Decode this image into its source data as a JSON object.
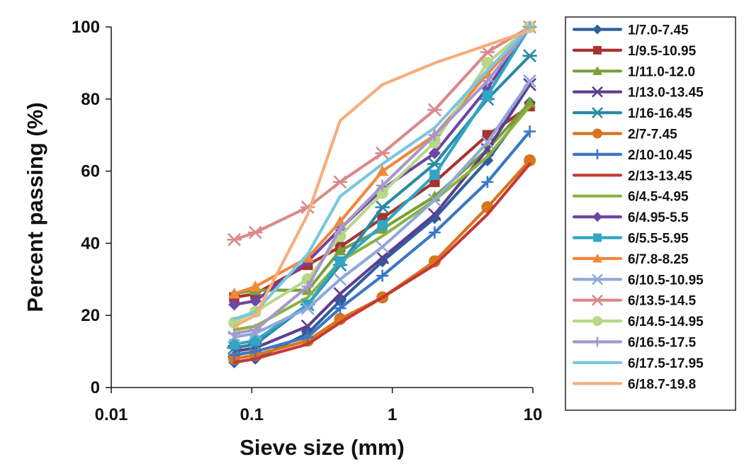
{
  "chart_data": {
    "type": "line",
    "xlabel": "Sieve size  (mm)",
    "ylabel": "Percent passing  (%)",
    "xscale": "log",
    "xlim": [
      0.01,
      10
    ],
    "ylim": [
      0,
      100
    ],
    "xticks": [
      0.01,
      0.1,
      1,
      10
    ],
    "xtick_labels": [
      "0.01",
      "0.1",
      "1",
      "10"
    ],
    "yticks": [
      0,
      20,
      40,
      60,
      80,
      100
    ],
    "ytick_labels": [
      "0",
      "20",
      "40",
      "60",
      "80",
      "100"
    ],
    "grid": false,
    "legend_position": "right",
    "x": [
      0.075,
      0.106,
      0.25,
      0.425,
      0.85,
      2.0,
      4.75,
      9.5
    ],
    "series": [
      {
        "name": "1/7.0-7.45",
        "color": "#2e5fa0",
        "marker": "diamond",
        "values": [
          7,
          8,
          15,
          24,
          35,
          47,
          63,
          79
        ]
      },
      {
        "name": "1/9.5-10.95",
        "color": "#a8322f",
        "marker": "square",
        "values": [
          25,
          26,
          34,
          39,
          47,
          57,
          70,
          78
        ]
      },
      {
        "name": "1/11.0-12.0",
        "color": "#7aa03a",
        "marker": "triangle",
        "values": [
          26,
          27,
          27,
          38,
          44,
          53,
          66,
          79
        ]
      },
      {
        "name": "1/13.0-13.45",
        "color": "#5e3e8e",
        "marker": "x",
        "values": [
          10,
          11,
          17,
          26,
          36,
          48,
          66,
          84
        ]
      },
      {
        "name": "1/16-16.45",
        "color": "#2a8ba3",
        "marker": "asterisk",
        "values": [
          11,
          12,
          23,
          34,
          50,
          62,
          80,
          92
        ]
      },
      {
        "name": "2/7-7.45",
        "color": "#d8751f",
        "marker": "circle",
        "values": [
          8,
          9,
          13,
          19,
          25,
          35,
          50,
          63
        ]
      },
      {
        "name": "2/10-10.45",
        "color": "#3a78c4",
        "marker": "plus",
        "values": [
          9,
          10,
          14,
          22,
          31,
          43,
          57,
          71
        ]
      },
      {
        "name": "2/13-13.45",
        "color": "#c43a35",
        "marker": "none",
        "values": [
          7,
          8,
          12,
          18,
          25,
          34,
          48,
          62
        ]
      },
      {
        "name": "6/4.5-4.95",
        "color": "#8bb33f",
        "marker": "none",
        "values": [
          16,
          17,
          25,
          35,
          42,
          52,
          64,
          78
        ]
      },
      {
        "name": "6/4.95-5.5",
        "color": "#6d46a3",
        "marker": "diamond",
        "values": [
          23,
          24,
          35,
          44,
          55,
          65,
          83,
          100
        ]
      },
      {
        "name": "6/5.5-5.95",
        "color": "#30a5c4",
        "marker": "square",
        "values": [
          12,
          13,
          23,
          35,
          45,
          59,
          81,
          100
        ]
      },
      {
        "name": "6/7.8-8.25",
        "color": "#f0883a",
        "marker": "triangle",
        "values": [
          26,
          28,
          36,
          46,
          60,
          70,
          87,
          100
        ]
      },
      {
        "name": "6/10.5-10.95",
        "color": "#8fa9d8",
        "marker": "x",
        "values": [
          14,
          15,
          22,
          30,
          39,
          52,
          68,
          85
        ]
      },
      {
        "name": "6/13.5-14.5",
        "color": "#d98a8a",
        "marker": "asterisk",
        "values": [
          41,
          43,
          50,
          57,
          65,
          77,
          93,
          100
        ]
      },
      {
        "name": "6/14.5-14.95",
        "color": "#b7d888",
        "marker": "circle",
        "values": [
          18,
          21,
          30,
          42,
          54,
          68,
          90,
          100
        ]
      },
      {
        "name": "6/16.5-17.5",
        "color": "#a797cc",
        "marker": "plus",
        "values": [
          15,
          16,
          28,
          44,
          56,
          70,
          85,
          100
        ]
      },
      {
        "name": "6/17.5-17.95",
        "color": "#79c7e0",
        "marker": "none",
        "values": [
          19,
          21,
          37,
          53,
          62,
          72,
          88,
          100
        ]
      },
      {
        "name": "6/18.7-19.8",
        "color": "#f7ad7c",
        "marker": "none",
        "values": [
          17,
          20,
          48,
          74,
          84,
          90,
          95,
          99
        ]
      }
    ]
  }
}
